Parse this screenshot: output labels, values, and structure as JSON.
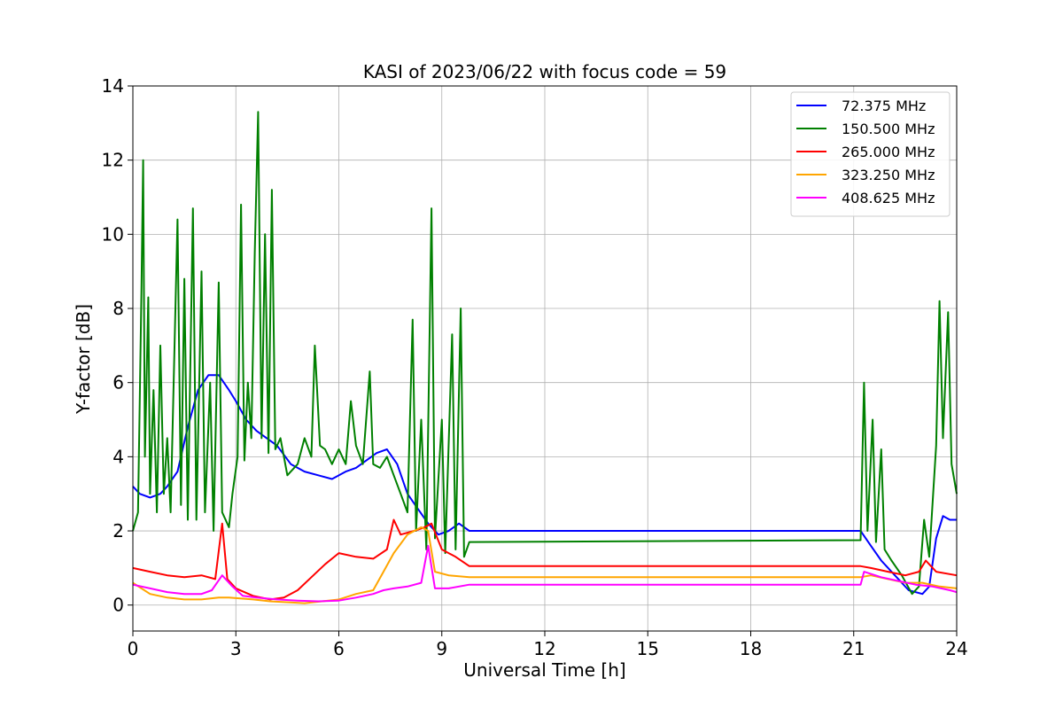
{
  "chart_data": {
    "type": "line",
    "title": "KASI of 2023/06/22 with focus code = 59",
    "xlabel": "Universal Time [h]",
    "ylabel": "Y-factor [dB]",
    "xlim": [
      0,
      24
    ],
    "ylim": [
      -0.7,
      14
    ],
    "xticks": [
      0,
      3,
      6,
      9,
      12,
      15,
      18,
      21,
      24
    ],
    "yticks": [
      0,
      2,
      4,
      6,
      8,
      10,
      12,
      14
    ],
    "grid": true,
    "legend_position": "top-right",
    "series": [
      {
        "name": " 72.375 MHz",
        "color": "#0000ff",
        "points": [
          [
            0,
            3.2
          ],
          [
            0.2,
            3.0
          ],
          [
            0.5,
            2.9
          ],
          [
            0.8,
            3.0
          ],
          [
            1.0,
            3.2
          ],
          [
            1.3,
            3.6
          ],
          [
            1.6,
            4.8
          ],
          [
            1.9,
            5.8
          ],
          [
            2.2,
            6.2
          ],
          [
            2.5,
            6.2
          ],
          [
            2.8,
            5.8
          ],
          [
            3.0,
            5.5
          ],
          [
            3.3,
            5.0
          ],
          [
            3.6,
            4.7
          ],
          [
            3.9,
            4.5
          ],
          [
            4.2,
            4.3
          ],
          [
            4.6,
            3.8
          ],
          [
            5.0,
            3.6
          ],
          [
            5.4,
            3.5
          ],
          [
            5.8,
            3.4
          ],
          [
            6.2,
            3.6
          ],
          [
            6.5,
            3.7
          ],
          [
            6.8,
            3.9
          ],
          [
            7.1,
            4.1
          ],
          [
            7.4,
            4.2
          ],
          [
            7.7,
            3.8
          ],
          [
            8.0,
            3.0
          ],
          [
            8.3,
            2.6
          ],
          [
            8.6,
            2.2
          ],
          [
            8.9,
            1.9
          ],
          [
            9.2,
            2.0
          ],
          [
            9.5,
            2.2
          ],
          [
            9.8,
            2.0
          ],
          [
            21.2,
            2.0
          ],
          [
            21.5,
            1.6
          ],
          [
            21.8,
            1.2
          ],
          [
            22.2,
            0.8
          ],
          [
            22.6,
            0.4
          ],
          [
            23.0,
            0.3
          ],
          [
            23.2,
            0.5
          ],
          [
            23.4,
            1.8
          ],
          [
            23.6,
            2.4
          ],
          [
            23.8,
            2.3
          ],
          [
            24.0,
            2.3
          ]
        ]
      },
      {
        "name": "150.500 MHz",
        "color": "#008000",
        "points": [
          [
            0,
            2.0
          ],
          [
            0.15,
            2.5
          ],
          [
            0.25,
            8.5
          ],
          [
            0.3,
            12.0
          ],
          [
            0.35,
            4.0
          ],
          [
            0.45,
            8.3
          ],
          [
            0.5,
            3.0
          ],
          [
            0.6,
            5.8
          ],
          [
            0.7,
            2.5
          ],
          [
            0.8,
            7.0
          ],
          [
            0.9,
            3.0
          ],
          [
            1.0,
            4.5
          ],
          [
            1.1,
            2.5
          ],
          [
            1.3,
            10.4
          ],
          [
            1.4,
            2.7
          ],
          [
            1.5,
            8.8
          ],
          [
            1.6,
            2.3
          ],
          [
            1.75,
            10.7
          ],
          [
            1.85,
            2.3
          ],
          [
            2.0,
            9.0
          ],
          [
            2.1,
            2.5
          ],
          [
            2.25,
            6.0
          ],
          [
            2.35,
            2.0
          ],
          [
            2.5,
            8.7
          ],
          [
            2.6,
            2.5
          ],
          [
            2.8,
            2.1
          ],
          [
            2.9,
            3.0
          ],
          [
            3.05,
            4.0
          ],
          [
            3.15,
            10.8
          ],
          [
            3.25,
            3.9
          ],
          [
            3.35,
            6.0
          ],
          [
            3.45,
            4.5
          ],
          [
            3.55,
            9.5
          ],
          [
            3.65,
            13.3
          ],
          [
            3.75,
            4.5
          ],
          [
            3.85,
            10.0
          ],
          [
            3.95,
            4.1
          ],
          [
            4.05,
            11.2
          ],
          [
            4.15,
            4.2
          ],
          [
            4.3,
            4.5
          ],
          [
            4.5,
            3.5
          ],
          [
            4.8,
            3.8
          ],
          [
            5.0,
            4.5
          ],
          [
            5.2,
            4.0
          ],
          [
            5.3,
            7.0
          ],
          [
            5.45,
            4.3
          ],
          [
            5.6,
            4.2
          ],
          [
            5.8,
            3.8
          ],
          [
            6.0,
            4.2
          ],
          [
            6.2,
            3.8
          ],
          [
            6.35,
            5.5
          ],
          [
            6.5,
            4.3
          ],
          [
            6.7,
            3.8
          ],
          [
            6.9,
            6.3
          ],
          [
            7.0,
            3.8
          ],
          [
            7.2,
            3.7
          ],
          [
            7.4,
            4.0
          ],
          [
            7.6,
            3.5
          ],
          [
            7.8,
            3.0
          ],
          [
            8.0,
            2.5
          ],
          [
            8.15,
            7.7
          ],
          [
            8.25,
            2.0
          ],
          [
            8.4,
            5.0
          ],
          [
            8.55,
            1.5
          ],
          [
            8.7,
            10.7
          ],
          [
            8.8,
            1.8
          ],
          [
            9.0,
            5.0
          ],
          [
            9.1,
            1.4
          ],
          [
            9.3,
            7.3
          ],
          [
            9.4,
            1.5
          ],
          [
            9.55,
            8.0
          ],
          [
            9.65,
            1.3
          ],
          [
            9.8,
            1.7
          ],
          [
            21.2,
            1.75
          ],
          [
            21.3,
            6.0
          ],
          [
            21.4,
            2.0
          ],
          [
            21.55,
            5.0
          ],
          [
            21.65,
            1.7
          ],
          [
            21.8,
            4.2
          ],
          [
            21.9,
            1.5
          ],
          [
            22.1,
            1.2
          ],
          [
            22.4,
            0.8
          ],
          [
            22.7,
            0.3
          ],
          [
            22.9,
            0.5
          ],
          [
            23.05,
            2.3
          ],
          [
            23.2,
            1.3
          ],
          [
            23.4,
            4.3
          ],
          [
            23.5,
            8.2
          ],
          [
            23.6,
            4.5
          ],
          [
            23.75,
            7.9
          ],
          [
            23.85,
            3.8
          ],
          [
            24.0,
            3.0
          ]
        ]
      },
      {
        "name": "265.000 MHz",
        "color": "#ff0000",
        "points": [
          [
            0,
            1.0
          ],
          [
            0.5,
            0.9
          ],
          [
            1.0,
            0.8
          ],
          [
            1.5,
            0.75
          ],
          [
            2.0,
            0.8
          ],
          [
            2.4,
            0.7
          ],
          [
            2.6,
            2.2
          ],
          [
            2.75,
            0.7
          ],
          [
            3.0,
            0.45
          ],
          [
            3.5,
            0.25
          ],
          [
            4.0,
            0.15
          ],
          [
            4.4,
            0.2
          ],
          [
            4.8,
            0.4
          ],
          [
            5.2,
            0.75
          ],
          [
            5.6,
            1.1
          ],
          [
            6.0,
            1.4
          ],
          [
            6.5,
            1.3
          ],
          [
            7.0,
            1.25
          ],
          [
            7.4,
            1.5
          ],
          [
            7.6,
            2.3
          ],
          [
            7.8,
            1.9
          ],
          [
            8.2,
            2.0
          ],
          [
            8.5,
            2.1
          ],
          [
            8.7,
            2.2
          ],
          [
            9.0,
            1.5
          ],
          [
            9.4,
            1.3
          ],
          [
            9.8,
            1.05
          ],
          [
            21.2,
            1.05
          ],
          [
            21.5,
            1.0
          ],
          [
            22.0,
            0.9
          ],
          [
            22.5,
            0.8
          ],
          [
            22.9,
            0.9
          ],
          [
            23.1,
            1.2
          ],
          [
            23.4,
            0.9
          ],
          [
            24.0,
            0.8
          ]
        ]
      },
      {
        "name": "323.250 MHz",
        "color": "#ffa500",
        "points": [
          [
            0,
            0.6
          ],
          [
            0.5,
            0.3
          ],
          [
            1.0,
            0.2
          ],
          [
            1.5,
            0.15
          ],
          [
            2.0,
            0.15
          ],
          [
            2.5,
            0.2
          ],
          [
            2.8,
            0.2
          ],
          [
            3.5,
            0.15
          ],
          [
            4.0,
            0.1
          ],
          [
            5.0,
            0.05
          ],
          [
            6.0,
            0.15
          ],
          [
            6.5,
            0.3
          ],
          [
            7.0,
            0.4
          ],
          [
            7.3,
            0.9
          ],
          [
            7.6,
            1.4
          ],
          [
            8.0,
            1.9
          ],
          [
            8.4,
            2.1
          ],
          [
            8.6,
            2.0
          ],
          [
            8.8,
            0.9
          ],
          [
            9.2,
            0.8
          ],
          [
            9.8,
            0.75
          ],
          [
            21.2,
            0.75
          ],
          [
            21.5,
            0.8
          ],
          [
            22.0,
            0.7
          ],
          [
            22.5,
            0.6
          ],
          [
            23.0,
            0.6
          ],
          [
            23.5,
            0.5
          ],
          [
            24.0,
            0.45
          ]
        ]
      },
      {
        "name": "408.625 MHz",
        "color": "#ff00ff",
        "points": [
          [
            0,
            0.55
          ],
          [
            0.5,
            0.45
          ],
          [
            1.0,
            0.35
          ],
          [
            1.5,
            0.3
          ],
          [
            2.0,
            0.3
          ],
          [
            2.3,
            0.4
          ],
          [
            2.6,
            0.8
          ],
          [
            2.9,
            0.5
          ],
          [
            3.2,
            0.25
          ],
          [
            3.6,
            0.2
          ],
          [
            4.2,
            0.15
          ],
          [
            4.8,
            0.12
          ],
          [
            5.4,
            0.1
          ],
          [
            6.0,
            0.12
          ],
          [
            6.5,
            0.2
          ],
          [
            7.0,
            0.3
          ],
          [
            7.3,
            0.4
          ],
          [
            7.6,
            0.45
          ],
          [
            8.0,
            0.5
          ],
          [
            8.4,
            0.6
          ],
          [
            8.6,
            1.6
          ],
          [
            8.8,
            0.45
          ],
          [
            9.2,
            0.45
          ],
          [
            9.8,
            0.55
          ],
          [
            21.2,
            0.55
          ],
          [
            21.3,
            0.9
          ],
          [
            21.8,
            0.75
          ],
          [
            22.3,
            0.65
          ],
          [
            22.8,
            0.55
          ],
          [
            23.3,
            0.5
          ],
          [
            23.8,
            0.4
          ],
          [
            24.0,
            0.35
          ]
        ]
      }
    ]
  }
}
